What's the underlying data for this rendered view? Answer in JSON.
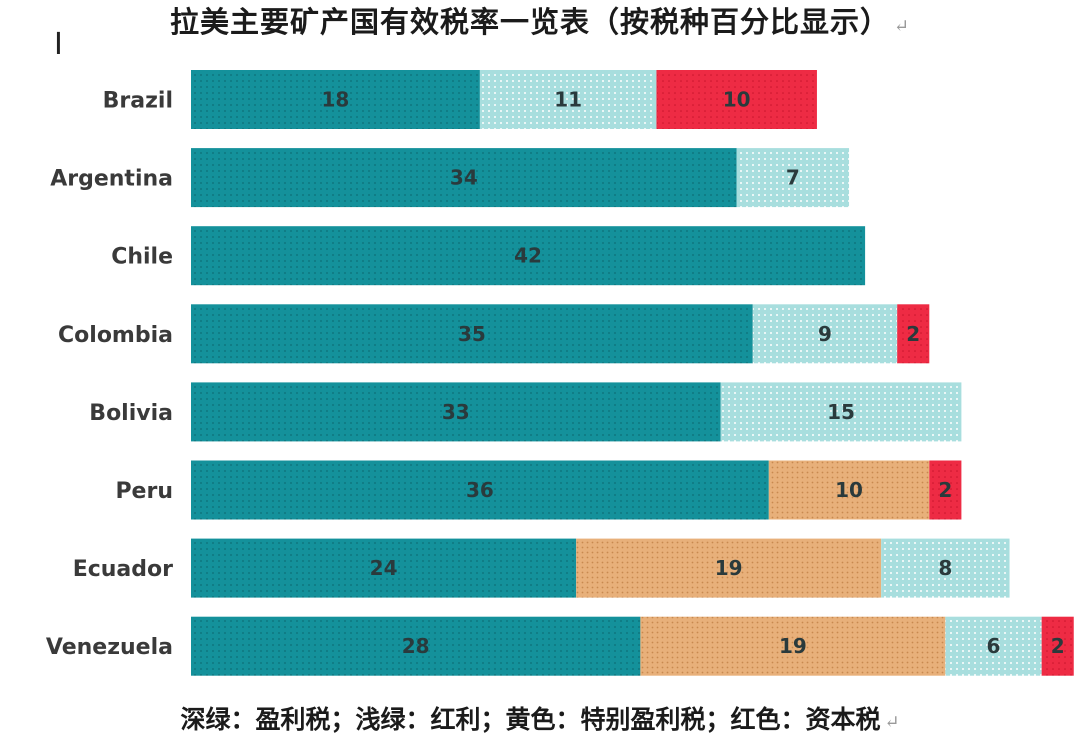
{
  "chart_data": {
    "type": "bar",
    "orientation": "horizontal",
    "stacked": true,
    "title": "拉美主要矿产国有效税率一览表（按税种百分比显示）",
    "legend_note": "深绿：盈利税；浅绿：红利；黄色：特别盈利税；红色：资本税",
    "categories": [
      "Brazil",
      "Argentina",
      "Chile",
      "Colombia",
      "Bolivia",
      "Peru",
      "Ecuador",
      "Venezuela"
    ],
    "series": [
      {
        "key": "profit_tax",
        "color": "#14919b",
        "values": [
          18,
          34,
          42,
          35,
          33,
          36,
          24,
          28
        ]
      },
      {
        "key": "special_profit_tax",
        "color": "#e8b07a",
        "values": [
          0,
          0,
          0,
          0,
          0,
          10,
          19,
          19
        ]
      },
      {
        "key": "dividends",
        "color": "#a8dede",
        "values": [
          11,
          7,
          0,
          9,
          15,
          0,
          8,
          6
        ]
      },
      {
        "key": "capital_tax",
        "color": "#ee2b44",
        "values": [
          10,
          0,
          0,
          2,
          0,
          2,
          0,
          2
        ]
      }
    ],
    "segment_order": [
      [
        "profit_tax",
        "dividends",
        "capital_tax"
      ],
      [
        "profit_tax",
        "dividends"
      ],
      [
        "profit_tax"
      ],
      [
        "profit_tax",
        "dividends",
        "capital_tax"
      ],
      [
        "profit_tax",
        "dividends"
      ],
      [
        "profit_tax",
        "special_profit_tax",
        "capital_tax"
      ],
      [
        "profit_tax",
        "special_profit_tax",
        "dividends"
      ],
      [
        "profit_tax",
        "special_profit_tax",
        "dividends",
        "capital_tax"
      ]
    ],
    "xlim": [
      0,
      56
    ],
    "grid": false
  },
  "paragraph_mark": "↵",
  "cursor_icon": "text-cursor-icon"
}
